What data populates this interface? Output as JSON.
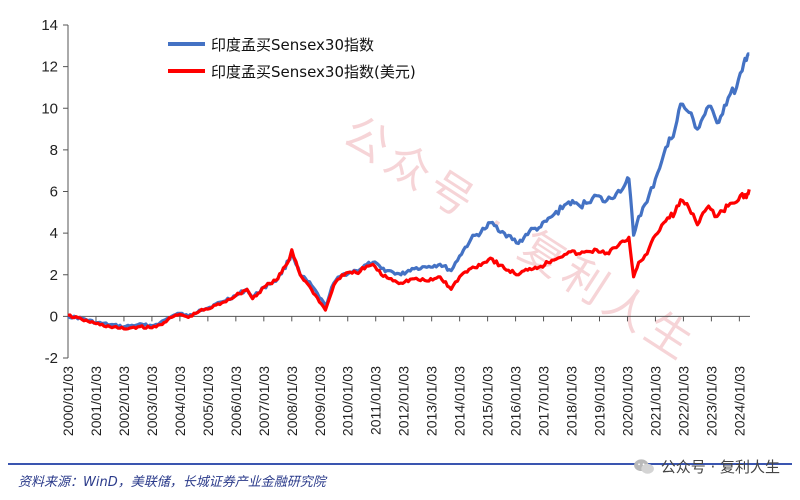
{
  "chart_data": {
    "type": "line",
    "title": "",
    "xlabel": "",
    "ylabel": "",
    "ylim": [
      -2,
      14
    ],
    "yticks": [
      "14",
      "12",
      "10",
      "8",
      "6",
      "4",
      "2",
      "0",
      "-2"
    ],
    "x_tick_labels": [
      "2000/01/03",
      "2001/01/03",
      "2002/01/03",
      "2003/01/03",
      "2004/01/03",
      "2005/01/03",
      "2006/01/03",
      "2007/01/03",
      "2008/01/03",
      "2009/01/03",
      "2010/01/03",
      "2011/01/03",
      "2012/01/03",
      "2013/01/03",
      "2014/01/03",
      "2015/01/03",
      "2016/01/03",
      "2017/01/03",
      "2018/01/03",
      "2019/01/03",
      "2020/01/03",
      "2021/01/03",
      "2022/01/03",
      "2023/01/03",
      "2024/01/03"
    ],
    "legend_position": "top-left",
    "grid": false,
    "series": [
      {
        "name": "印度孟买Sensex30指数",
        "color": "#4472C4",
        "x": [
          2000.0,
          2000.5,
          2001.0,
          2001.5,
          2002.0,
          2002.5,
          2003.0,
          2003.3,
          2003.7,
          2004.0,
          2004.3,
          2004.7,
          2005.0,
          2005.5,
          2006.0,
          2006.4,
          2006.6,
          2007.0,
          2007.5,
          2007.9,
          2008.0,
          2008.3,
          2008.7,
          2009.2,
          2009.5,
          2009.8,
          2010.3,
          2010.9,
          2011.2,
          2011.9,
          2012.3,
          2012.9,
          2013.3,
          2013.7,
          2014.0,
          2014.4,
          2014.9,
          2015.1,
          2015.6,
          2016.1,
          2016.5,
          2016.9,
          2017.3,
          2017.9,
          2018.3,
          2018.9,
          2019.2,
          2019.6,
          2019.9,
          2020.05,
          2020.22,
          2020.4,
          2020.7,
          2021.0,
          2021.3,
          2021.7,
          2021.9,
          2022.2,
          2022.5,
          2022.9,
          2023.2,
          2023.6,
          2023.9,
          2024.1,
          2024.25,
          2024.35
        ],
        "y": [
          0.0,
          -0.1,
          -0.3,
          -0.4,
          -0.5,
          -0.4,
          -0.45,
          -0.3,
          0.0,
          0.15,
          0.0,
          0.3,
          0.4,
          0.7,
          1.0,
          1.3,
          0.9,
          1.4,
          1.8,
          2.7,
          3.1,
          2.0,
          1.5,
          0.5,
          1.6,
          2.0,
          2.2,
          2.6,
          2.3,
          2.0,
          2.3,
          2.4,
          2.5,
          2.2,
          2.9,
          3.7,
          4.2,
          4.5,
          4.0,
          3.5,
          4.1,
          4.3,
          4.8,
          5.5,
          5.3,
          5.8,
          5.5,
          5.9,
          6.3,
          6.6,
          3.9,
          4.8,
          5.5,
          6.6,
          7.8,
          9.0,
          10.2,
          9.8,
          9.0,
          10.1,
          9.3,
          10.5,
          11.0,
          11.8,
          12.3,
          12.6
        ]
      },
      {
        "name": "印度孟买Sensex30指数(美元)",
        "color": "#FF0000",
        "x": [
          2000.0,
          2000.5,
          2001.0,
          2001.5,
          2002.0,
          2002.5,
          2003.0,
          2003.3,
          2003.7,
          2004.0,
          2004.3,
          2004.7,
          2005.0,
          2005.5,
          2006.0,
          2006.4,
          2006.6,
          2007.0,
          2007.5,
          2007.9,
          2008.0,
          2008.3,
          2008.7,
          2009.2,
          2009.5,
          2009.8,
          2010.3,
          2010.9,
          2011.2,
          2011.9,
          2012.3,
          2012.9,
          2013.3,
          2013.7,
          2014.0,
          2014.4,
          2014.9,
          2015.1,
          2015.6,
          2016.1,
          2016.5,
          2016.9,
          2017.3,
          2017.9,
          2018.3,
          2018.9,
          2019.2,
          2019.6,
          2019.9,
          2020.05,
          2020.22,
          2020.4,
          2020.7,
          2021.0,
          2021.3,
          2021.7,
          2021.9,
          2022.2,
          2022.5,
          2022.9,
          2023.2,
          2023.6,
          2023.9,
          2024.1,
          2024.25,
          2024.35
        ],
        "y": [
          0.05,
          -0.15,
          -0.35,
          -0.5,
          -0.6,
          -0.5,
          -0.55,
          -0.4,
          -0.05,
          0.1,
          -0.05,
          0.25,
          0.35,
          0.65,
          1.0,
          1.3,
          0.85,
          1.4,
          1.8,
          2.7,
          3.2,
          2.0,
          1.3,
          0.3,
          1.5,
          2.0,
          2.1,
          2.5,
          2.0,
          1.6,
          1.8,
          1.7,
          1.9,
          1.3,
          1.9,
          2.3,
          2.6,
          2.8,
          2.3,
          2.0,
          2.3,
          2.4,
          2.7,
          3.1,
          3.0,
          3.2,
          3.0,
          3.3,
          3.6,
          3.8,
          1.9,
          2.6,
          3.0,
          3.9,
          4.5,
          5.0,
          5.6,
          5.2,
          4.4,
          5.3,
          4.8,
          5.3,
          5.5,
          5.9,
          5.7,
          6.1
        ]
      }
    ]
  },
  "footer": {
    "source": "资料来源：WinD，美联储，长城证券产业金融研究院",
    "brand": "公众号 · 复利人生"
  },
  "watermark": {
    "text": "公众号 · 复利人生",
    "color": "#f4c8cc"
  }
}
